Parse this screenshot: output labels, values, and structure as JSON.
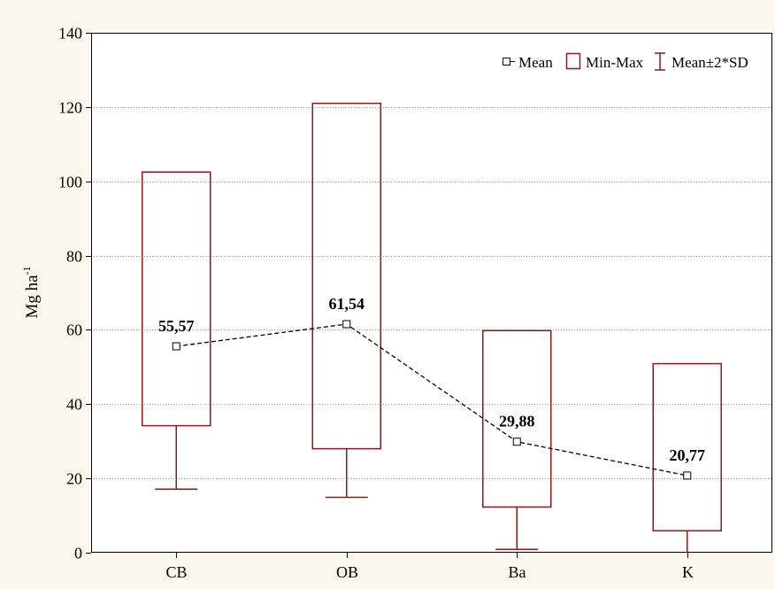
{
  "chart_data": {
    "type": "box",
    "ylabel": "Mg ha",
    "ylabel_superscript": "-1",
    "ylim": [
      0,
      140
    ],
    "yticks": [
      0,
      20,
      40,
      60,
      80,
      100,
      120,
      140
    ],
    "grid": true,
    "grid_style": "dotted",
    "legend_position": "top-right",
    "legend": {
      "mean": "Mean",
      "minmax": "Min-Max",
      "sd": "Mean±2*SD"
    },
    "categories": [
      "CB",
      "OB",
      "Ba",
      "K"
    ],
    "mean": [
      55.57,
      61.54,
      29.88,
      20.77
    ],
    "mean_labels": [
      "55,57",
      "61,54",
      "29,88",
      "20,77"
    ],
    "min": [
      34.2,
      28.0,
      12.3,
      5.9
    ],
    "max": [
      102.5,
      121.0,
      59.8,
      50.9
    ],
    "sd_lower": [
      17.1,
      14.9,
      0.9,
      0.0
    ],
    "colors": {
      "box": "#8b1a1a",
      "mean_line": "#000000",
      "background": "#fdf8ee",
      "plot": "#ffffff"
    }
  }
}
